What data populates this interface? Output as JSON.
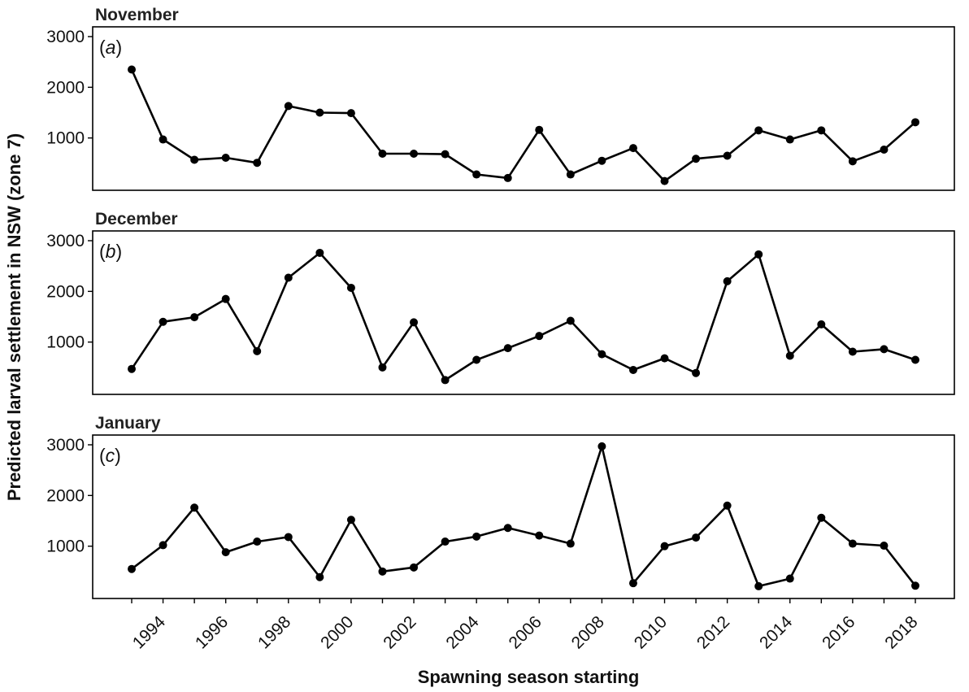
{
  "chart_data": {
    "type": "line",
    "xlabel": "Spawning season starting",
    "ylabel": "Predicted larval settlement in NSW (zone 7)",
    "x": [
      1993,
      1994,
      1995,
      1996,
      1997,
      1998,
      1999,
      2000,
      2001,
      2002,
      2003,
      2004,
      2005,
      2006,
      2007,
      2008,
      2009,
      2010,
      2011,
      2012,
      2013,
      2014,
      2015,
      2016,
      2017,
      2018
    ],
    "x_tick_labels": [
      "1994",
      "1996",
      "1998",
      "2000",
      "2002",
      "2004",
      "2006",
      "2008",
      "2010",
      "2012",
      "2014",
      "2016",
      "2018"
    ],
    "y_ticks": [
      "1000",
      "2000",
      "3000"
    ],
    "panels": [
      {
        "title": "November",
        "tag": "(a)",
        "values": [
          2350,
          970,
          570,
          610,
          510,
          1630,
          1500,
          1490,
          690,
          690,
          680,
          280,
          210,
          1160,
          280,
          550,
          800,
          150,
          590,
          650,
          1150,
          970,
          1150,
          540,
          770,
          1310
        ]
      },
      {
        "title": "December",
        "tag": "(b)",
        "values": [
          470,
          1400,
          1490,
          1850,
          820,
          2270,
          2760,
          2070,
          500,
          1390,
          250,
          650,
          880,
          1120,
          1420,
          760,
          450,
          680,
          390,
          2200,
          2730,
          730,
          1350,
          810,
          860,
          650
        ]
      },
      {
        "title": "January",
        "tag": "(c)",
        "values": [
          550,
          1020,
          1760,
          880,
          1090,
          1180,
          390,
          1520,
          500,
          580,
          1090,
          1190,
          1360,
          1210,
          1050,
          2970,
          270,
          1000,
          1170,
          1800,
          210,
          360,
          1560,
          1050,
          1010,
          220
        ]
      }
    ]
  }
}
